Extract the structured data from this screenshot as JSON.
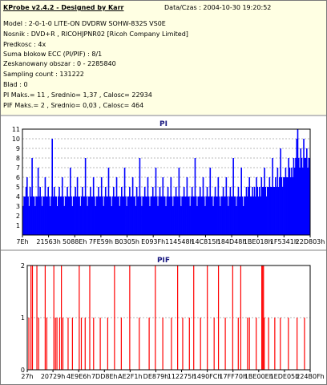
{
  "info": {
    "title": "KProbe v2.4.2 - Designed by Karr",
    "date": "Data/Czas : 2004-10-30 19:20:52",
    "lines": [
      "Model : 2-0-1-0 LITE-ON DVDRW SOHW-832S  VS0E",
      "Nosnik : DVD+R , RICOHJPNR02 [Ricoh Company Limited]",
      "Predkosc : 4x",
      "Suma blokow ECC (PI/PIF) : 8/1",
      "Zeskanowany obszar : 0 - 2285840",
      "Sampling count : 131222",
      "Blad : 0",
      "PI Maks.= 11 , Srednio= 1,37 , Calosc= 22934",
      "PIF Maks.= 2 , Srednio= 0,03 , Calosc= 464"
    ]
  },
  "chart_data": [
    {
      "type": "bar",
      "title": "PI",
      "ylim": [
        0,
        11
      ],
      "yticks": [
        1,
        2,
        3,
        4,
        5,
        6,
        7,
        8,
        9,
        10,
        11
      ],
      "xticks": [
        "7Eh",
        "21563h",
        "5088Eh",
        "7FE59h",
        "B0305h",
        "E093Fh",
        "114548h",
        "14C815h",
        "184D48h",
        "1BE018h",
        "1F5341h",
        "22D803h"
      ],
      "x_range": [
        0,
        2285840
      ],
      "series": [
        {
          "values": [
            3,
            4,
            4,
            5,
            6,
            4,
            3,
            5,
            4,
            8,
            4,
            4,
            3,
            4,
            4,
            7,
            4,
            5,
            4,
            3,
            4,
            4,
            6,
            4,
            4,
            5,
            4,
            3,
            4,
            10,
            4,
            5,
            4,
            4,
            3,
            4,
            5,
            4,
            4,
            6,
            4,
            3,
            4,
            4,
            5,
            4,
            4,
            7,
            4,
            3,
            4,
            4,
            5,
            4,
            6,
            4,
            4,
            3,
            4,
            5,
            4,
            4,
            8,
            4,
            3,
            4,
            4,
            5,
            4,
            4,
            6,
            4,
            3,
            4,
            4,
            5,
            4,
            4,
            6,
            4,
            3,
            4,
            5,
            4,
            4,
            7,
            4,
            4,
            3,
            4,
            5,
            4,
            4,
            6,
            4,
            4,
            3,
            4,
            5,
            4,
            4,
            7,
            4,
            3,
            4,
            4,
            5,
            4,
            4,
            6,
            4,
            4,
            3,
            5,
            4,
            4,
            8,
            4,
            3,
            4,
            4,
            5,
            4,
            4,
            6,
            4,
            3,
            4,
            4,
            5,
            4,
            4,
            7,
            4,
            3,
            4,
            5,
            4,
            4,
            6,
            4,
            4,
            3,
            4,
            5,
            4,
            4,
            6,
            4,
            3,
            4,
            4,
            5,
            4,
            4,
            7,
            4,
            3,
            4,
            4,
            5,
            4,
            4,
            6,
            4,
            4,
            3,
            4,
            5,
            4,
            4,
            8,
            4,
            3,
            4,
            4,
            5,
            4,
            4,
            6,
            4,
            3,
            4,
            5,
            4,
            4,
            7,
            4,
            4,
            3,
            4,
            5,
            4,
            4,
            6,
            4,
            3,
            4,
            4,
            5,
            4,
            4,
            6,
            4,
            3,
            4,
            5,
            4,
            4,
            8,
            4,
            4,
            3,
            4,
            5,
            4,
            4,
            7,
            4,
            3,
            4,
            4,
            5,
            4,
            5,
            6,
            4,
            4,
            5,
            4,
            5,
            4,
            6,
            5,
            4,
            5,
            4,
            6,
            5,
            5,
            7,
            5,
            4,
            5,
            5,
            6,
            5,
            5,
            8,
            5,
            5,
            6,
            5,
            7,
            5,
            6,
            9,
            6,
            5,
            6,
            6,
            7,
            6,
            6,
            8,
            7,
            6,
            7,
            6,
            8,
            7,
            8,
            10,
            11,
            8,
            7,
            9,
            8,
            7,
            10,
            8,
            8,
            9,
            7,
            8,
            8
          ]
        }
      ]
    },
    {
      "type": "bar",
      "title": "PIF",
      "ylim": [
        0,
        2
      ],
      "yticks": [
        0,
        1,
        2
      ],
      "xticks": [
        "27h",
        "20729h",
        "4E9E6h",
        "7DD8Eh",
        "AE2F1h",
        "DE879h",
        "112275h",
        "1490FCh",
        "17FF70h",
        "1BE00Eh",
        "1EDE05h",
        "224B0Fh"
      ],
      "x_range": [
        0,
        2285840
      ],
      "series": [
        {
          "points": [
            [
              13000,
              1
            ],
            [
              30000,
              2
            ],
            [
              42000,
              2
            ],
            [
              78000,
              2
            ],
            [
              92000,
              1
            ],
            [
              145000,
              2
            ],
            [
              158000,
              1
            ],
            [
              215000,
              2
            ],
            [
              228000,
              1
            ],
            [
              240000,
              1
            ],
            [
              262000,
              1
            ],
            [
              276000,
              2
            ],
            [
              288000,
              1
            ],
            [
              330000,
              1
            ],
            [
              365000,
              1
            ],
            [
              420000,
              2
            ],
            [
              437000,
              1
            ],
            [
              468000,
              1
            ],
            [
              505000,
              2
            ],
            [
              536000,
              1
            ],
            [
              590000,
              1
            ],
            [
              650000,
              1
            ],
            [
              705000,
              2
            ],
            [
              760000,
              1
            ],
            [
              828000,
              2
            ],
            [
              905000,
              1
            ],
            [
              985000,
              1
            ],
            [
              1035000,
              2
            ],
            [
              1095000,
              1
            ],
            [
              1165000,
              1
            ],
            [
              1215000,
              2
            ],
            [
              1256000,
              1
            ],
            [
              1310000,
              1
            ],
            [
              1345000,
              2
            ],
            [
              1400000,
              1
            ],
            [
              1455000,
              2
            ],
            [
              1510000,
              1
            ],
            [
              1545000,
              2
            ],
            [
              1600000,
              1
            ],
            [
              1660000,
              2
            ],
            [
              1705000,
              1
            ],
            [
              1725000,
              2
            ],
            [
              1780000,
              1
            ],
            [
              1795000,
              1
            ],
            [
              1850000,
              1
            ],
            [
              1895000,
              2
            ],
            [
              1902000,
              2
            ],
            [
              1909000,
              2
            ],
            [
              1915000,
              1
            ],
            [
              1950000,
              1
            ],
            [
              2000000,
              1
            ],
            [
              2045000,
              1
            ],
            [
              2110000,
              1
            ],
            [
              2180000,
              1
            ],
            [
              2240000,
              1
            ]
          ]
        }
      ]
    }
  ]
}
